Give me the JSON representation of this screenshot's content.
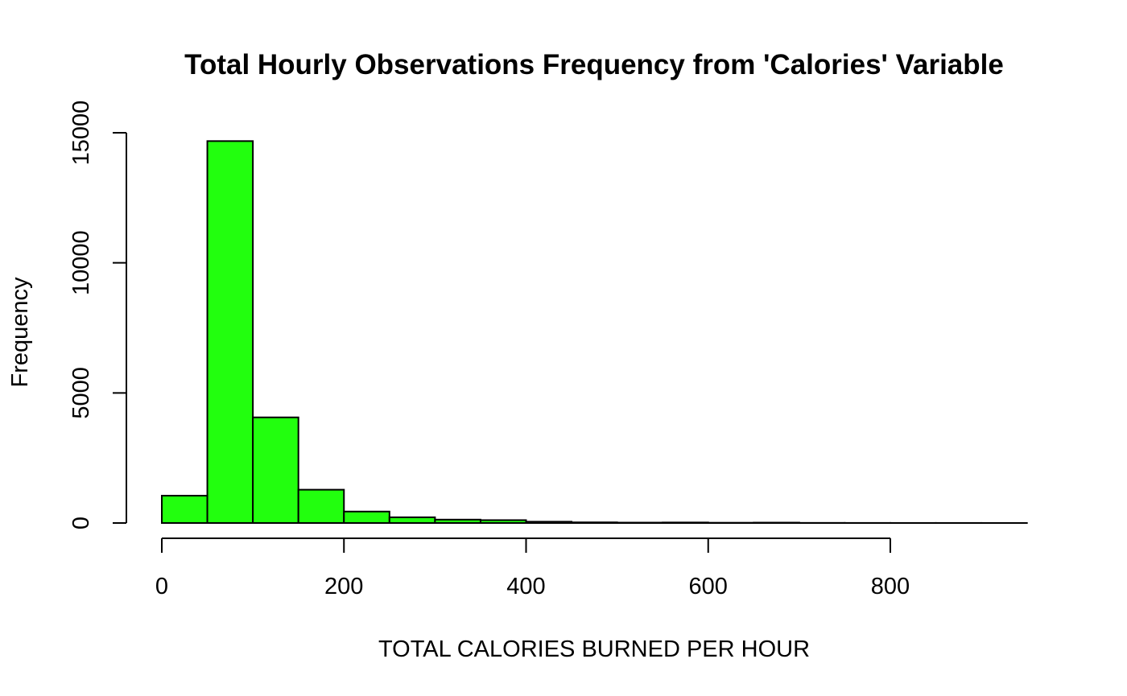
{
  "chart_data": {
    "type": "bar",
    "subtype": "histogram",
    "title": "Total Hourly Observations Frequency from 'Calories' Variable",
    "xlabel": "TOTAL CALORIES BURNED PER HOUR",
    "ylabel": "Frequency",
    "bar_color": "#22ff0e",
    "bin_width": 50,
    "bins": [
      {
        "start": 0,
        "end": 50,
        "count": 1050
      },
      {
        "start": 50,
        "end": 100,
        "count": 14680
      },
      {
        "start": 100,
        "end": 150,
        "count": 4060
      },
      {
        "start": 150,
        "end": 200,
        "count": 1280
      },
      {
        "start": 200,
        "end": 250,
        "count": 440
      },
      {
        "start": 250,
        "end": 300,
        "count": 220
      },
      {
        "start": 300,
        "end": 350,
        "count": 130
      },
      {
        "start": 350,
        "end": 400,
        "count": 110
      },
      {
        "start": 400,
        "end": 450,
        "count": 50
      },
      {
        "start": 450,
        "end": 500,
        "count": 25
      },
      {
        "start": 500,
        "end": 550,
        "count": 15
      },
      {
        "start": 550,
        "end": 600,
        "count": 20
      },
      {
        "start": 600,
        "end": 650,
        "count": 10
      },
      {
        "start": 650,
        "end": 700,
        "count": 15
      },
      {
        "start": 700,
        "end": 750,
        "count": 5
      },
      {
        "start": 750,
        "end": 800,
        "count": 3
      },
      {
        "start": 800,
        "end": 850,
        "count": 2
      },
      {
        "start": 850,
        "end": 900,
        "count": 2
      },
      {
        "start": 900,
        "end": 950,
        "count": 1
      }
    ],
    "xlim": [
      0,
      950
    ],
    "ylim": [
      0,
      15000
    ],
    "x_ticks": [
      0,
      200,
      400,
      600,
      800
    ],
    "y_ticks": [
      0,
      5000,
      10000,
      15000
    ],
    "x_tick_labels": [
      "0",
      "200",
      "400",
      "600",
      "800"
    ],
    "y_tick_labels": [
      "0",
      "5000",
      "10000",
      "15000"
    ],
    "grid": false,
    "legend": "none"
  }
}
